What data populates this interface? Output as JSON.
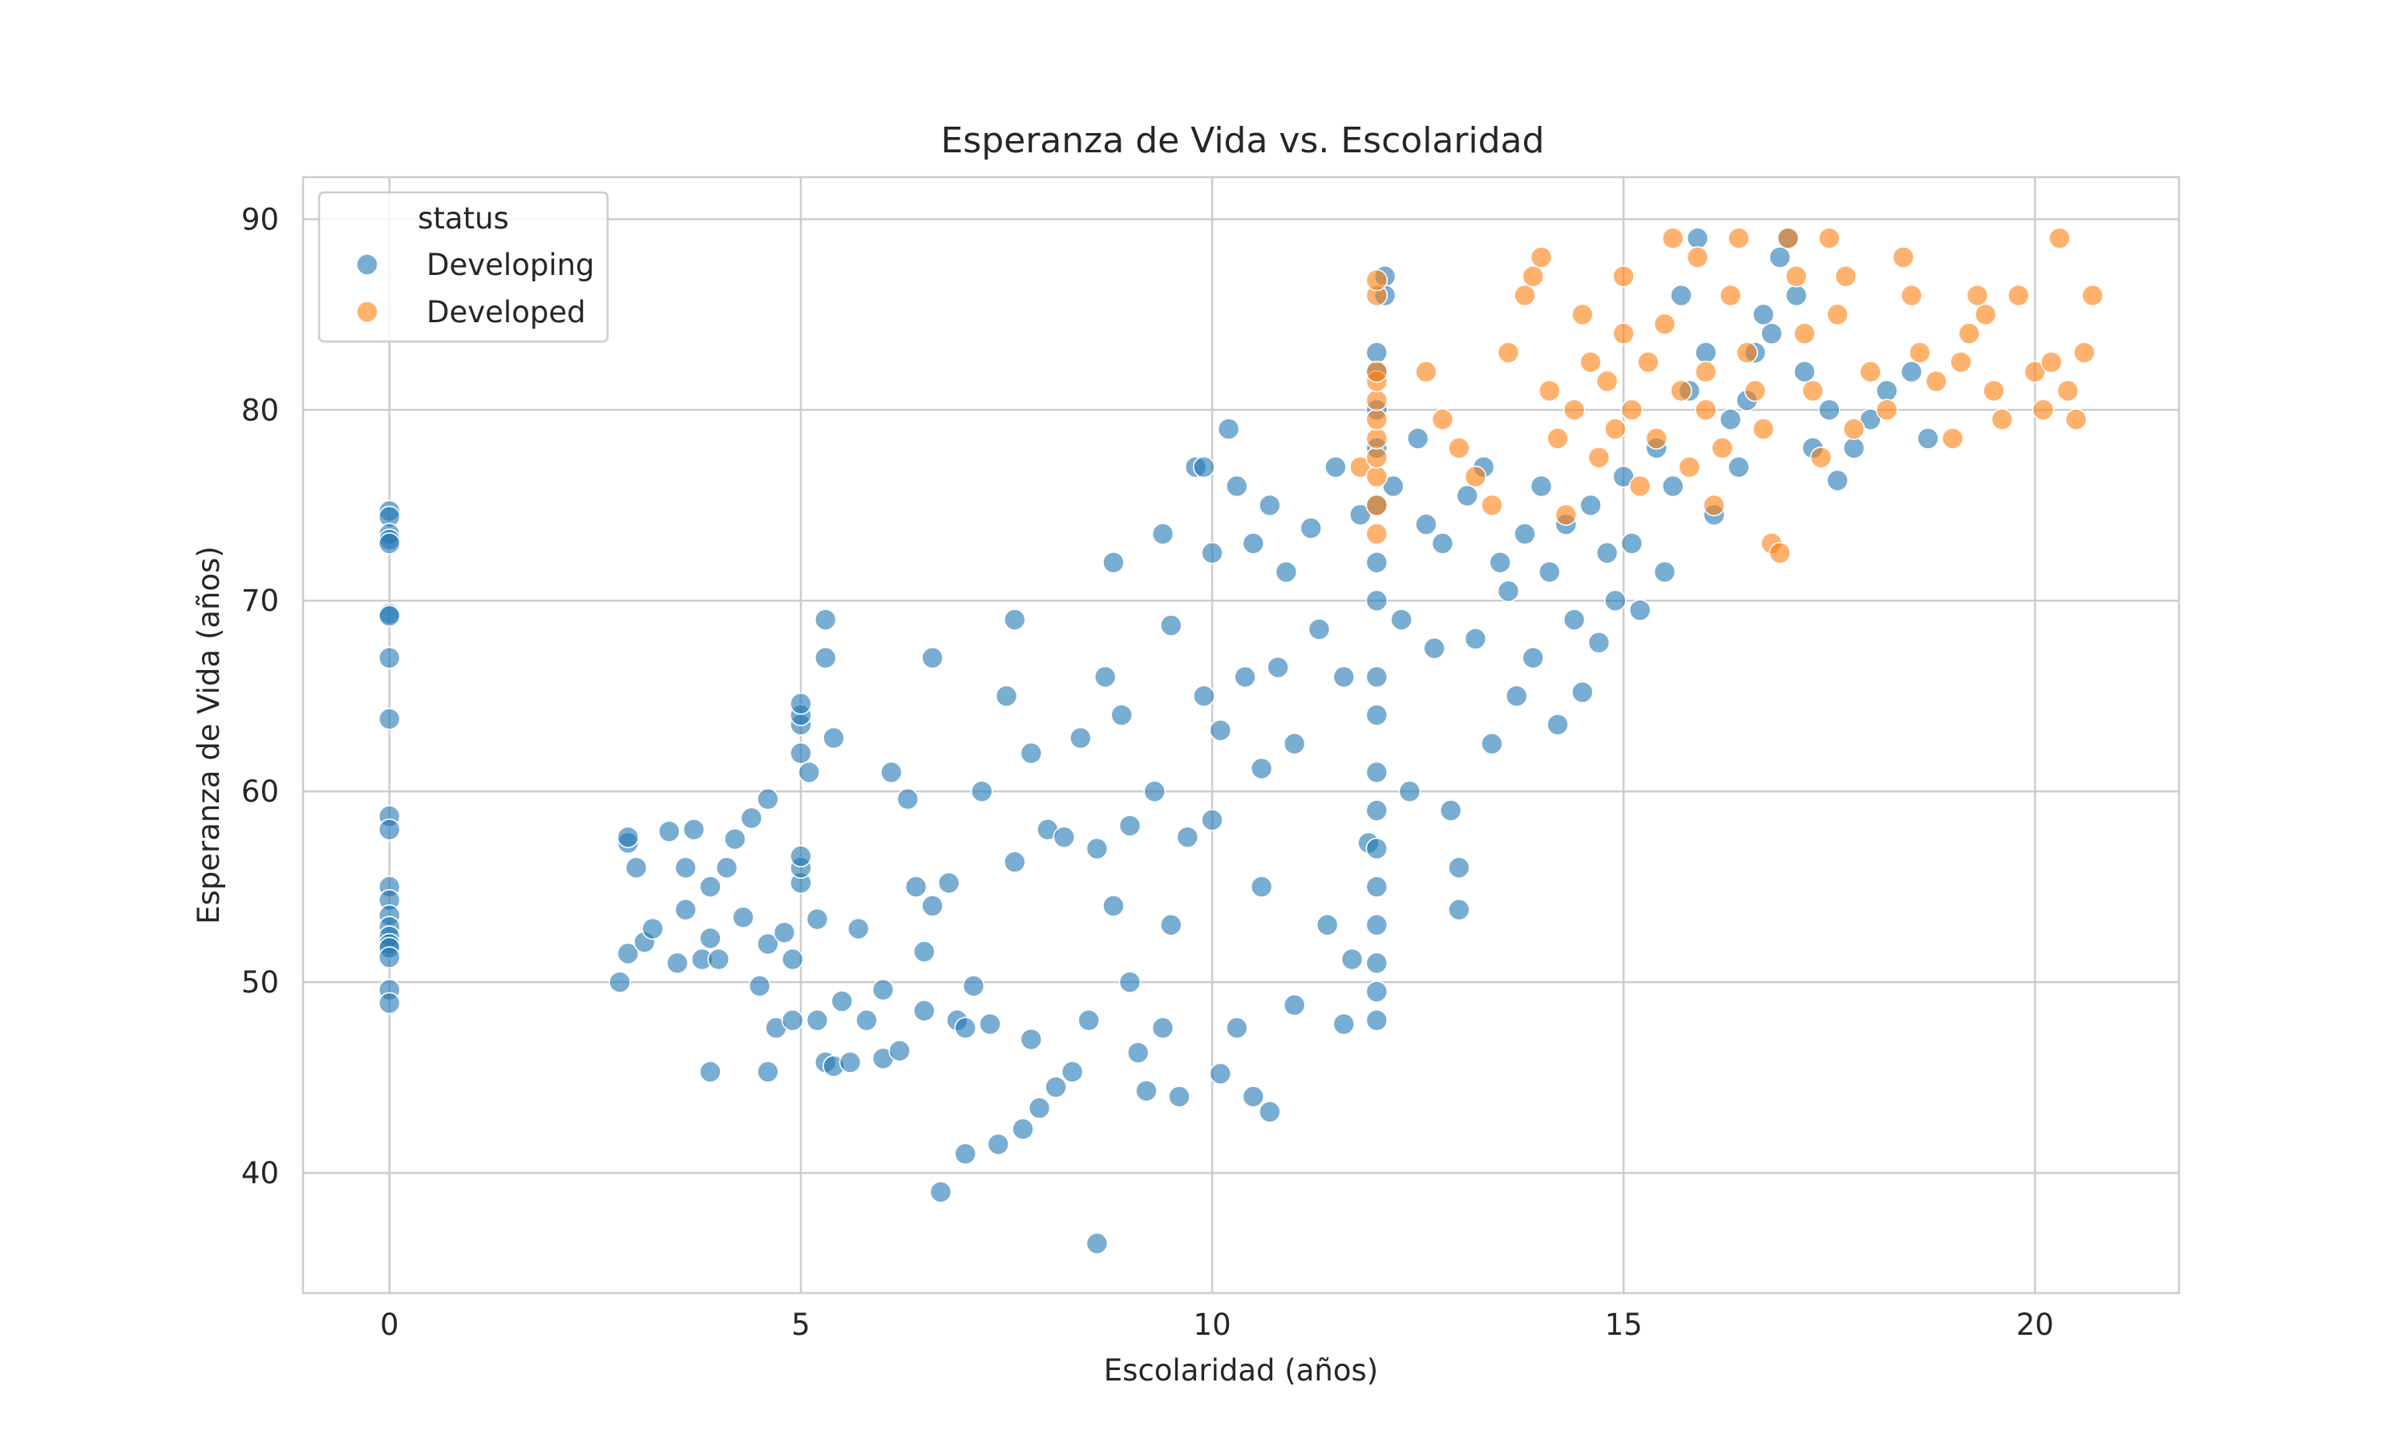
{
  "chart_data": {
    "type": "scatter",
    "title": "Esperanza de Vida vs. Escolaridad",
    "xlabel": "Escolaridad (años)",
    "ylabel": "Esperanza de Vida (años)",
    "xlim": [
      -1.05,
      21.75
    ],
    "ylim": [
      33.7,
      92.2
    ],
    "xticks": [
      0,
      5,
      10,
      15,
      20
    ],
    "yticks": [
      40,
      50,
      60,
      70,
      80,
      90
    ],
    "grid": true,
    "legend": {
      "title": "status",
      "placement": "top-left"
    },
    "series": [
      {
        "name": "Developing",
        "color": "#1f77b4",
        "points": [
          [
            0,
            74.7
          ],
          [
            0,
            74.4
          ],
          [
            0,
            73.5
          ],
          [
            0,
            73.2
          ],
          [
            0,
            73.0
          ],
          [
            0,
            69.3
          ],
          [
            0,
            69.2
          ],
          [
            0,
            67.0
          ],
          [
            0,
            63.8
          ],
          [
            0,
            58.7
          ],
          [
            0,
            58.0
          ],
          [
            0,
            55.0
          ],
          [
            0,
            54.3
          ],
          [
            0,
            53.5
          ],
          [
            0,
            52.9
          ],
          [
            0,
            52.4
          ],
          [
            0,
            52.0
          ],
          [
            0,
            51.8
          ],
          [
            0,
            51.3
          ],
          [
            0,
            49.6
          ],
          [
            0,
            48.9
          ],
          [
            2.8,
            50.0
          ],
          [
            2.9,
            51.5
          ],
          [
            2.9,
            57.3
          ],
          [
            2.9,
            57.6
          ],
          [
            3.0,
            56.0
          ],
          [
            3.1,
            52.1
          ],
          [
            3.2,
            52.8
          ],
          [
            3.4,
            57.9
          ],
          [
            3.5,
            51.0
          ],
          [
            3.6,
            53.8
          ],
          [
            3.6,
            56.0
          ],
          [
            3.7,
            58.0
          ],
          [
            3.8,
            51.2
          ],
          [
            3.9,
            55.0
          ],
          [
            3.9,
            45.3
          ],
          [
            3.9,
            52.3
          ],
          [
            4.0,
            51.2
          ],
          [
            4.1,
            56.0
          ],
          [
            4.2,
            57.5
          ],
          [
            4.3,
            53.4
          ],
          [
            4.4,
            58.6
          ],
          [
            4.5,
            49.8
          ],
          [
            4.6,
            52.0
          ],
          [
            4.6,
            45.3
          ],
          [
            4.6,
            59.6
          ],
          [
            4.7,
            47.6
          ],
          [
            4.8,
            52.6
          ],
          [
            4.9,
            48.0
          ],
          [
            4.9,
            51.2
          ],
          [
            5.0,
            62.0
          ],
          [
            5.0,
            63.5
          ],
          [
            5.0,
            64.0
          ],
          [
            5.0,
            64.6
          ],
          [
            5.0,
            55.2
          ],
          [
            5.0,
            56.0
          ],
          [
            5.0,
            56.6
          ],
          [
            5.1,
            61.0
          ],
          [
            5.2,
            53.3
          ],
          [
            5.2,
            48.0
          ],
          [
            5.3,
            45.8
          ],
          [
            5.3,
            69.0
          ],
          [
            5.3,
            67.0
          ],
          [
            5.4,
            62.8
          ],
          [
            5.4,
            45.6
          ],
          [
            5.5,
            49.0
          ],
          [
            5.6,
            45.8
          ],
          [
            5.7,
            52.8
          ],
          [
            5.8,
            48.0
          ],
          [
            6.0,
            46.0
          ],
          [
            6.0,
            49.6
          ],
          [
            6.1,
            61.0
          ],
          [
            6.2,
            46.4
          ],
          [
            6.3,
            59.6
          ],
          [
            6.4,
            55.0
          ],
          [
            6.5,
            48.5
          ],
          [
            6.5,
            51.6
          ],
          [
            6.6,
            67.0
          ],
          [
            6.6,
            54.0
          ],
          [
            6.7,
            39.0
          ],
          [
            6.8,
            55.2
          ],
          [
            6.9,
            48.0
          ],
          [
            7.0,
            41.0
          ],
          [
            7.0,
            47.6
          ],
          [
            7.1,
            49.8
          ],
          [
            7.2,
            60.0
          ],
          [
            7.3,
            47.8
          ],
          [
            7.4,
            41.5
          ],
          [
            7.5,
            65.0
          ],
          [
            7.6,
            69.0
          ],
          [
            7.6,
            56.3
          ],
          [
            7.7,
            42.3
          ],
          [
            7.8,
            47.0
          ],
          [
            7.8,
            62.0
          ],
          [
            7.9,
            43.4
          ],
          [
            8.0,
            58.0
          ],
          [
            8.1,
            44.5
          ],
          [
            8.2,
            57.6
          ],
          [
            8.3,
            45.3
          ],
          [
            8.4,
            62.8
          ],
          [
            8.5,
            48.0
          ],
          [
            8.6,
            36.3
          ],
          [
            8.6,
            57.0
          ],
          [
            8.7,
            66.0
          ],
          [
            8.8,
            72.0
          ],
          [
            8.8,
            54.0
          ],
          [
            8.9,
            64.0
          ],
          [
            9.0,
            50.0
          ],
          [
            9.0,
            58.2
          ],
          [
            9.1,
            46.3
          ],
          [
            9.2,
            44.3
          ],
          [
            9.3,
            60.0
          ],
          [
            9.4,
            73.5
          ],
          [
            9.4,
            47.6
          ],
          [
            9.5,
            53.0
          ],
          [
            9.5,
            68.7
          ],
          [
            9.6,
            44.0
          ],
          [
            9.7,
            57.6
          ],
          [
            9.8,
            77.0
          ],
          [
            9.9,
            77.0
          ],
          [
            9.9,
            65.0
          ],
          [
            10.0,
            72.5
          ],
          [
            10.0,
            58.5
          ],
          [
            10.1,
            45.2
          ],
          [
            10.1,
            63.2
          ],
          [
            10.2,
            79.0
          ],
          [
            10.3,
            76.0
          ],
          [
            10.3,
            47.6
          ],
          [
            10.4,
            66.0
          ],
          [
            10.5,
            44.0
          ],
          [
            10.5,
            73.0
          ],
          [
            10.6,
            61.2
          ],
          [
            10.6,
            55.0
          ],
          [
            10.7,
            43.2
          ],
          [
            10.7,
            75.0
          ],
          [
            10.8,
            66.5
          ],
          [
            10.9,
            71.5
          ],
          [
            11.0,
            62.5
          ],
          [
            11.0,
            48.8
          ],
          [
            11.2,
            73.8
          ],
          [
            11.3,
            68.5
          ],
          [
            11.4,
            53.0
          ],
          [
            11.5,
            77.0
          ],
          [
            11.6,
            47.8
          ],
          [
            11.6,
            66.0
          ],
          [
            11.7,
            51.2
          ],
          [
            11.8,
            74.5
          ],
          [
            11.9,
            57.3
          ],
          [
            12.0,
            82.0
          ],
          [
            12.0,
            83.0
          ],
          [
            12.0,
            80.0
          ],
          [
            12.0,
            78.0
          ],
          [
            12.0,
            75.0
          ],
          [
            12.0,
            72.0
          ],
          [
            12.0,
            70.0
          ],
          [
            12.0,
            66.0
          ],
          [
            12.0,
            64.0
          ],
          [
            12.0,
            61.0
          ],
          [
            12.0,
            59.0
          ],
          [
            12.0,
            57.0
          ],
          [
            12.0,
            55.0
          ],
          [
            12.0,
            53.0
          ],
          [
            12.0,
            51.0
          ],
          [
            12.0,
            49.5
          ],
          [
            12.0,
            48.0
          ],
          [
            12.1,
            87.0
          ],
          [
            12.1,
            86.0
          ],
          [
            12.2,
            76.0
          ],
          [
            12.3,
            69.0
          ],
          [
            12.4,
            60.0
          ],
          [
            12.5,
            78.5
          ],
          [
            12.6,
            74.0
          ],
          [
            12.7,
            67.5
          ],
          [
            12.8,
            73.0
          ],
          [
            12.9,
            59.0
          ],
          [
            13.0,
            56.0
          ],
          [
            13.0,
            53.8
          ],
          [
            13.1,
            75.5
          ],
          [
            13.2,
            68.0
          ],
          [
            13.3,
            77.0
          ],
          [
            13.4,
            62.5
          ],
          [
            13.5,
            72.0
          ],
          [
            13.6,
            70.5
          ],
          [
            13.7,
            65.0
          ],
          [
            13.8,
            73.5
          ],
          [
            13.9,
            67.0
          ],
          [
            14.0,
            76.0
          ],
          [
            14.1,
            71.5
          ],
          [
            14.2,
            63.5
          ],
          [
            14.3,
            74.0
          ],
          [
            14.4,
            69.0
          ],
          [
            14.5,
            65.2
          ],
          [
            14.6,
            75.0
          ],
          [
            14.7,
            67.8
          ],
          [
            14.8,
            72.5
          ],
          [
            14.9,
            70.0
          ],
          [
            15.0,
            76.5
          ],
          [
            15.1,
            73.0
          ],
          [
            15.2,
            69.5
          ],
          [
            15.4,
            78.0
          ],
          [
            15.5,
            71.5
          ],
          [
            15.6,
            76.0
          ],
          [
            15.7,
            86.0
          ],
          [
            15.8,
            81.0
          ],
          [
            15.9,
            89.0
          ],
          [
            16.0,
            83.0
          ],
          [
            16.1,
            74.5
          ],
          [
            16.3,
            79.5
          ],
          [
            16.4,
            77.0
          ],
          [
            16.5,
            80.5
          ],
          [
            16.6,
            83.0
          ],
          [
            16.7,
            85.0
          ],
          [
            16.8,
            84.0
          ],
          [
            16.9,
            88.0
          ],
          [
            17.0,
            89.0
          ],
          [
            17.1,
            86.0
          ],
          [
            17.2,
            82.0
          ],
          [
            17.3,
            78.0
          ],
          [
            17.5,
            80.0
          ],
          [
            17.6,
            76.3
          ],
          [
            17.8,
            78.0
          ],
          [
            18.0,
            79.5
          ],
          [
            18.2,
            81.0
          ],
          [
            18.5,
            82.0
          ],
          [
            18.7,
            78.5
          ]
        ]
      },
      {
        "name": "Developed",
        "color": "#ff7f0e",
        "points": [
          [
            11.8,
            77.0
          ],
          [
            12.0,
            73.5
          ],
          [
            12.0,
            75.0
          ],
          [
            12.0,
            76.5
          ],
          [
            12.0,
            77.5
          ],
          [
            12.0,
            78.5
          ],
          [
            12.0,
            79.5
          ],
          [
            12.0,
            80.5
          ],
          [
            12.0,
            81.5
          ],
          [
            12.0,
            82.0
          ],
          [
            12.0,
            86.0
          ],
          [
            12.0,
            86.8
          ],
          [
            12.6,
            82.0
          ],
          [
            12.8,
            79.5
          ],
          [
            13.0,
            78.0
          ],
          [
            13.2,
            76.5
          ],
          [
            13.4,
            75.0
          ],
          [
            13.6,
            83.0
          ],
          [
            13.8,
            86.0
          ],
          [
            13.9,
            87.0
          ],
          [
            14.0,
            88.0
          ],
          [
            14.1,
            81.0
          ],
          [
            14.2,
            78.5
          ],
          [
            14.3,
            74.5
          ],
          [
            14.4,
            80.0
          ],
          [
            14.5,
            85.0
          ],
          [
            14.6,
            82.5
          ],
          [
            14.7,
            77.5
          ],
          [
            14.8,
            81.5
          ],
          [
            14.9,
            79.0
          ],
          [
            15.0,
            87.0
          ],
          [
            15.0,
            84.0
          ],
          [
            15.1,
            80.0
          ],
          [
            15.2,
            76.0
          ],
          [
            15.3,
            82.5
          ],
          [
            15.4,
            78.5
          ],
          [
            15.5,
            84.5
          ],
          [
            15.6,
            89.0
          ],
          [
            15.7,
            81.0
          ],
          [
            15.8,
            77.0
          ],
          [
            15.9,
            88.0
          ],
          [
            16.0,
            82.0
          ],
          [
            16.0,
            80.0
          ],
          [
            16.1,
            75.0
          ],
          [
            16.2,
            78.0
          ],
          [
            16.3,
            86.0
          ],
          [
            16.4,
            89.0
          ],
          [
            16.5,
            83.0
          ],
          [
            16.6,
            81.0
          ],
          [
            16.7,
            79.0
          ],
          [
            16.8,
            73.0
          ],
          [
            16.9,
            72.5
          ],
          [
            17.0,
            89.0
          ],
          [
            17.1,
            87.0
          ],
          [
            17.2,
            84.0
          ],
          [
            17.3,
            81.0
          ],
          [
            17.4,
            77.5
          ],
          [
            17.5,
            89.0
          ],
          [
            17.6,
            85.0
          ],
          [
            17.7,
            87.0
          ],
          [
            17.8,
            79.0
          ],
          [
            18.0,
            82.0
          ],
          [
            18.2,
            80.0
          ],
          [
            18.4,
            88.0
          ],
          [
            18.5,
            86.0
          ],
          [
            18.6,
            83.0
          ],
          [
            18.8,
            81.5
          ],
          [
            19.0,
            78.5
          ],
          [
            19.1,
            82.5
          ],
          [
            19.2,
            84.0
          ],
          [
            19.3,
            86.0
          ],
          [
            19.4,
            85.0
          ],
          [
            19.5,
            81.0
          ],
          [
            19.6,
            79.5
          ],
          [
            19.8,
            86.0
          ],
          [
            20.0,
            82.0
          ],
          [
            20.1,
            80.0
          ],
          [
            20.2,
            82.5
          ],
          [
            20.3,
            89.0
          ],
          [
            20.4,
            81.0
          ],
          [
            20.5,
            79.5
          ],
          [
            20.6,
            83.0
          ],
          [
            20.7,
            86.0
          ]
        ]
      }
    ]
  }
}
